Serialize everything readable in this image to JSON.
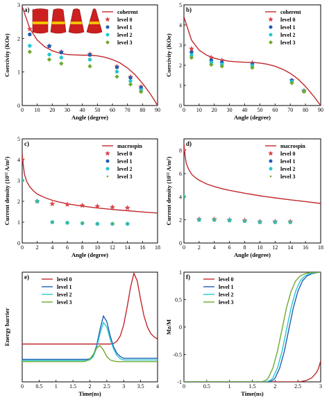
{
  "chart_data": [
    {
      "id": "a",
      "type": "scatter",
      "panel_label": "a)",
      "xlabel": "Angle (degree)",
      "ylabel": "Coercivity (KOe)",
      "xlim": [
        0,
        90
      ],
      "ylim": [
        0,
        3
      ],
      "xticks": [
        0,
        10,
        20,
        30,
        40,
        50,
        60,
        70,
        80,
        90
      ],
      "yticks": [
        0,
        1,
        2,
        3
      ],
      "legend_position": "top-right",
      "series": [
        {
          "name": "coherent",
          "kind": "line",
          "color": "#c0272d",
          "x": [
            0,
            5,
            10,
            15,
            20,
            25,
            30,
            35,
            40,
            45,
            50,
            55,
            60,
            65,
            70,
            75,
            80,
            85,
            88,
            90
          ],
          "y": [
            2.95,
            2.3,
            1.95,
            1.75,
            1.63,
            1.56,
            1.52,
            1.51,
            1.5,
            1.5,
            1.48,
            1.44,
            1.37,
            1.27,
            1.12,
            0.92,
            0.66,
            0.36,
            0.15,
            0.0
          ]
        },
        {
          "name": "level 0",
          "kind": "scatter",
          "marker": "star",
          "color": "#d9454a",
          "x": [
            5,
            18,
            26,
            45,
            63,
            72,
            79
          ],
          "y": [
            2.28,
            1.77,
            1.6,
            1.53,
            1.16,
            0.85,
            0.56
          ]
        },
        {
          "name": "level 1",
          "kind": "scatter",
          "marker": "circle",
          "color": "#1f5fb4",
          "x": [
            5,
            18,
            26,
            45,
            63,
            72,
            79
          ],
          "y": [
            2.12,
            1.77,
            1.58,
            1.51,
            1.14,
            0.83,
            0.53
          ]
        },
        {
          "name": "level 2",
          "kind": "scatter",
          "marker": "circle",
          "color": "#29c6d1",
          "x": [
            5,
            18,
            26,
            45,
            63,
            72,
            79
          ],
          "y": [
            1.78,
            1.52,
            1.43,
            1.37,
            1.01,
            0.73,
            0.46
          ]
        },
        {
          "name": "level 3",
          "kind": "scatter",
          "marker": "diamond",
          "color": "#6fa92f",
          "x": [
            5,
            18,
            26,
            45,
            63,
            72,
            79
          ],
          "y": [
            1.6,
            1.37,
            1.25,
            1.17,
            0.86,
            0.63,
            0.41
          ]
        }
      ]
    },
    {
      "id": "b",
      "type": "scatter",
      "panel_label": "b)",
      "xlabel": "Angle (degree)",
      "ylabel": "Coercivity (KOe)",
      "xlim": [
        0,
        90
      ],
      "ylim": [
        0,
        5
      ],
      "xticks": [
        0,
        10,
        20,
        30,
        40,
        50,
        60,
        70,
        80,
        90
      ],
      "yticks": [
        0,
        1,
        2,
        3,
        4,
        5
      ],
      "legend_position": "top-right",
      "series": [
        {
          "name": "coherent",
          "kind": "line",
          "color": "#c0272d",
          "x": [
            0,
            5,
            10,
            15,
            20,
            25,
            30,
            35,
            40,
            45,
            50,
            55,
            60,
            65,
            70,
            75,
            80,
            85,
            88,
            90
          ],
          "y": [
            4.4,
            3.25,
            2.75,
            2.5,
            2.35,
            2.26,
            2.2,
            2.17,
            2.15,
            2.14,
            2.11,
            2.05,
            1.95,
            1.8,
            1.6,
            1.32,
            0.95,
            0.5,
            0.2,
            0.0
          ]
        },
        {
          "name": "level 0",
          "kind": "scatter",
          "marker": "star",
          "color": "#d9454a",
          "x": [
            5,
            18,
            25,
            45,
            71,
            79
          ],
          "y": [
            2.82,
            2.38,
            2.25,
            2.12,
            1.25,
            0.73
          ]
        },
        {
          "name": "level 1",
          "kind": "scatter",
          "marker": "circle",
          "color": "#1f5fb4",
          "x": [
            5,
            18,
            25,
            45,
            71,
            79
          ],
          "y": [
            2.65,
            2.25,
            2.15,
            2.06,
            1.25,
            0.73
          ]
        },
        {
          "name": "level 2",
          "kind": "scatter",
          "marker": "circle",
          "color": "#29c6d1",
          "x": [
            5,
            18,
            25,
            45,
            71,
            79
          ],
          "y": [
            2.5,
            2.13,
            2.05,
            1.98,
            1.18,
            0.72
          ]
        },
        {
          "name": "level 3",
          "kind": "scatter",
          "marker": "diamond",
          "color": "#6fa92f",
          "x": [
            5,
            18,
            25,
            45,
            71,
            79
          ],
          "y": [
            2.38,
            2.03,
            1.95,
            1.88,
            1.12,
            0.69
          ]
        }
      ]
    },
    {
      "id": "c",
      "type": "scatter",
      "panel_label": "c)",
      "xlabel": "Angle (degree)",
      "ylabel": "Current density (10¹² A/m²)",
      "xlim": [
        0,
        18
      ],
      "ylim": [
        0,
        5
      ],
      "xticks": [
        0,
        2,
        4,
        6,
        8,
        10,
        12,
        14,
        16,
        18
      ],
      "yticks": [
        0,
        1,
        2,
        3,
        4,
        5
      ],
      "legend_position": "top-right",
      "series": [
        {
          "name": "macrospin",
          "kind": "line",
          "color": "#c0272d",
          "x": [
            0,
            0.1,
            0.3,
            0.6,
            1,
            1.5,
            2,
            3,
            4,
            5,
            6,
            8,
            10,
            12,
            14,
            16,
            18
          ],
          "y": [
            4.3,
            3.85,
            3.3,
            2.95,
            2.7,
            2.5,
            2.35,
            2.18,
            2.05,
            1.96,
            1.88,
            1.77,
            1.68,
            1.61,
            1.55,
            1.49,
            1.44
          ]
        },
        {
          "name": "level 0",
          "kind": "scatter",
          "marker": "star",
          "color": "#d9454a",
          "x": [
            0,
            2,
            4,
            6,
            8,
            10,
            12,
            14
          ],
          "y": [
            4.0,
            2.0,
            1.88,
            1.85,
            1.8,
            1.76,
            1.72,
            1.69
          ]
        },
        {
          "name": "level 1",
          "kind": "scatter",
          "marker": "circle",
          "color": "#1f5fb4",
          "x": [
            0,
            2,
            4,
            6,
            8,
            10,
            12,
            14
          ],
          "y": [
            3.0,
            2.0,
            1.0,
            0.97,
            0.95,
            0.92,
            0.92,
            0.92
          ]
        },
        {
          "name": "level 2",
          "kind": "scatter",
          "marker": "circle",
          "color": "#29c6d1",
          "x": [
            0,
            2,
            4,
            6,
            8,
            10,
            12,
            14
          ],
          "y": [
            3.0,
            2.0,
            1.0,
            0.97,
            0.95,
            0.92,
            0.92,
            0.92
          ]
        },
        {
          "name": "level 3",
          "kind": "scatter",
          "marker": "dot",
          "color": "#6fa92f",
          "x": [
            0,
            2,
            4,
            6,
            8,
            10,
            12,
            14
          ],
          "y": [
            3.0,
            2.0,
            1.0,
            0.97,
            0.95,
            0.92,
            0.92,
            0.92
          ]
        }
      ]
    },
    {
      "id": "d",
      "type": "scatter",
      "panel_label": "d)",
      "xlabel": "Angle (degree)",
      "ylabel": "Current density (10¹² A/m²)",
      "xlim": [
        0,
        18
      ],
      "ylim": [
        0,
        9
      ],
      "xticks": [
        0,
        2,
        4,
        6,
        8,
        10,
        12,
        14,
        16,
        18
      ],
      "yticks": [
        0,
        2,
        4,
        6,
        8
      ],
      "legend_position": "top-right",
      "series": [
        {
          "name": "macrospin",
          "kind": "line",
          "color": "#c0272d",
          "x": [
            0,
            0.1,
            0.3,
            0.6,
            1,
            1.5,
            2,
            3,
            4,
            5,
            6,
            8,
            10,
            12,
            14,
            16,
            18
          ],
          "y": [
            8.6,
            7.8,
            6.9,
            6.4,
            5.95,
            5.65,
            5.42,
            5.1,
            4.88,
            4.7,
            4.55,
            4.3,
            4.08,
            3.9,
            3.73,
            3.58,
            3.42
          ]
        },
        {
          "name": "level 0",
          "kind": "scatter",
          "marker": "star",
          "color": "#d9454a",
          "x": [
            0,
            2,
            4,
            6,
            8,
            10,
            12,
            14
          ],
          "y": [
            8.0,
            2.05,
            2.05,
            2.0,
            1.95,
            1.85,
            1.85,
            1.85
          ]
        },
        {
          "name": "level 1",
          "kind": "scatter",
          "marker": "circle",
          "color": "#1f5fb4",
          "x": [
            0,
            2,
            4,
            6,
            8,
            10,
            12,
            14
          ],
          "y": [
            4.0,
            2.0,
            2.0,
            1.95,
            1.9,
            1.8,
            1.8,
            1.8
          ]
        },
        {
          "name": "level 2",
          "kind": "scatter",
          "marker": "circle",
          "color": "#29c6d1",
          "x": [
            0,
            2,
            4,
            6,
            8,
            10,
            12,
            14
          ],
          "y": [
            4.0,
            2.0,
            2.0,
            1.95,
            1.9,
            1.8,
            1.8,
            1.8
          ]
        },
        {
          "name": "level 3",
          "kind": "scatter",
          "marker": "dot",
          "color": "#6fa92f",
          "x": [
            0,
            2,
            4,
            6,
            8,
            10,
            12,
            14
          ],
          "y": [
            4.0,
            2.0,
            2.0,
            1.95,
            1.9,
            1.8,
            1.8,
            1.8
          ]
        }
      ]
    },
    {
      "id": "e",
      "type": "line",
      "panel_label": "e)",
      "xlabel": "Time(ns)",
      "ylabel": "Energy barrier",
      "xlim": [
        0,
        4
      ],
      "ylim": [
        0,
        1
      ],
      "xticks": [
        0,
        0.5,
        1,
        1.5,
        2,
        2.5,
        3,
        3.5,
        4
      ],
      "yticks": [],
      "legend_position": "top-left",
      "series": [
        {
          "name": "level 0",
          "kind": "line",
          "color": "#c0272d",
          "x": [
            0,
            2.6,
            2.7,
            2.8,
            2.9,
            3.0,
            3.1,
            3.2,
            3.3,
            3.4,
            3.5,
            3.6,
            3.7,
            3.8,
            3.9,
            4.0
          ],
          "y": [
            0.345,
            0.345,
            0.35,
            0.37,
            0.42,
            0.52,
            0.68,
            0.86,
            0.99,
            0.92,
            0.75,
            0.6,
            0.5,
            0.44,
            0.41,
            0.39
          ]
        },
        {
          "name": "level 1",
          "kind": "line",
          "color": "#1f5fb4",
          "x": [
            0,
            1.9,
            2.0,
            2.1,
            2.2,
            2.3,
            2.4,
            2.5,
            2.6,
            2.7,
            2.8,
            2.9,
            3.0,
            4.0
          ],
          "y": [
            0.205,
            0.205,
            0.21,
            0.24,
            0.33,
            0.48,
            0.6,
            0.55,
            0.42,
            0.32,
            0.26,
            0.23,
            0.215,
            0.215
          ]
        },
        {
          "name": "level 2",
          "kind": "line",
          "color": "#29c6d1",
          "x": [
            0,
            1.9,
            2.0,
            2.1,
            2.2,
            2.3,
            2.4,
            2.5,
            2.6,
            2.7,
            2.8,
            2.9,
            3.0,
            4.0
          ],
          "y": [
            0.195,
            0.195,
            0.2,
            0.23,
            0.31,
            0.44,
            0.54,
            0.5,
            0.39,
            0.3,
            0.24,
            0.21,
            0.2,
            0.2
          ]
        },
        {
          "name": "level 3",
          "kind": "line",
          "color": "#6fa92f",
          "x": [
            0,
            1.8,
            1.9,
            2.0,
            2.1,
            2.2,
            2.3,
            2.4,
            2.5,
            2.6,
            2.7,
            2.8,
            4.0
          ],
          "y": [
            0.185,
            0.185,
            0.19,
            0.21,
            0.25,
            0.31,
            0.33,
            0.29,
            0.23,
            0.2,
            0.19,
            0.185,
            0.185
          ]
        }
      ]
    },
    {
      "id": "f",
      "type": "line",
      "panel_label": "f)",
      "xlabel": "Time(ns)",
      "ylabel": "Mz/M",
      "xlim": [
        0,
        3
      ],
      "ylim": [
        -1,
        1
      ],
      "xticks": [
        0,
        0.5,
        1,
        1.5,
        2,
        2.5,
        3
      ],
      "yticks": [
        -1,
        -0.5,
        0,
        0.5,
        1
      ],
      "legend_position": "top-left",
      "series": [
        {
          "name": "level 0",
          "kind": "line",
          "color": "#c0272d",
          "x": [
            0,
            2.5,
            2.6,
            2.7,
            2.8,
            2.9,
            2.95,
            3.0
          ],
          "y": [
            -1,
            -1,
            -0.99,
            -0.97,
            -0.93,
            -0.84,
            -0.76,
            -0.62
          ]
        },
        {
          "name": "level 1",
          "kind": "line",
          "color": "#1f5fb4",
          "x": [
            0,
            1.85,
            1.95,
            2.0,
            2.1,
            2.2,
            2.3,
            2.4,
            2.5,
            2.6,
            2.7,
            2.8,
            2.9,
            3.0
          ],
          "y": [
            -1,
            -1,
            -0.97,
            -0.93,
            -0.75,
            -0.45,
            -0.05,
            0.35,
            0.65,
            0.84,
            0.93,
            0.97,
            0.99,
            1.0
          ]
        },
        {
          "name": "level 2",
          "kind": "line",
          "color": "#29c6d1",
          "x": [
            0,
            1.8,
            1.9,
            1.95,
            2.05,
            2.15,
            2.25,
            2.35,
            2.45,
            2.55,
            2.65,
            2.75,
            2.85,
            3.0
          ],
          "y": [
            -1,
            -1,
            -0.97,
            -0.93,
            -0.75,
            -0.45,
            -0.05,
            0.35,
            0.65,
            0.84,
            0.93,
            0.97,
            0.99,
            1.0
          ]
        },
        {
          "name": "level 3",
          "kind": "line",
          "color": "#6fa92f",
          "x": [
            0,
            1.7,
            1.8,
            1.85,
            1.95,
            2.05,
            2.15,
            2.25,
            2.35,
            2.45,
            2.55,
            2.65,
            2.75,
            3.0
          ],
          "y": [
            -1,
            -1,
            -0.97,
            -0.93,
            -0.75,
            -0.45,
            -0.05,
            0.35,
            0.65,
            0.84,
            0.93,
            0.97,
            0.99,
            1.0
          ]
        }
      ]
    }
  ],
  "inset": {
    "shapes": [
      "cylinder",
      "cone-tip-1",
      "cone-tip-2",
      "cone"
    ],
    "body_color": "#cc1f1f",
    "band_color": "#f2c200"
  }
}
